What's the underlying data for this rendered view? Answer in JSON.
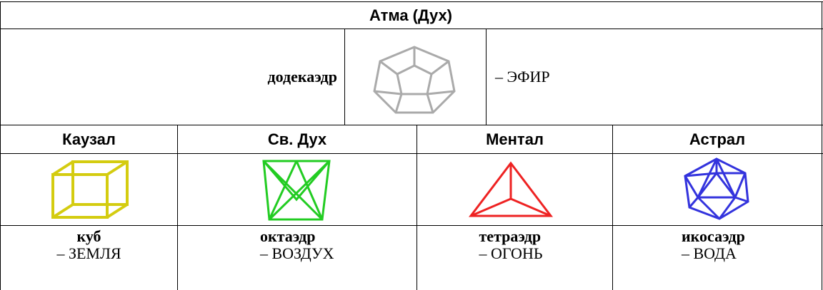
{
  "header": {
    "title": "Атма (Дух)"
  },
  "ether": {
    "name": "додекаэдр",
    "element": "– ЭФИР"
  },
  "columns": [
    {
      "header": "Каузал",
      "name": "куб",
      "element": "– ЗЕМЛЯ"
    },
    {
      "header": "Св. Дух",
      "name": "октаэдр",
      "element": "– ВОЗДУХ"
    },
    {
      "header": "Ментал",
      "name": "тетраэдр",
      "element": "– ОГОНЬ"
    },
    {
      "header": "Астрал",
      "name": "икосаэдр",
      "element": "– ВОДА"
    }
  ]
}
